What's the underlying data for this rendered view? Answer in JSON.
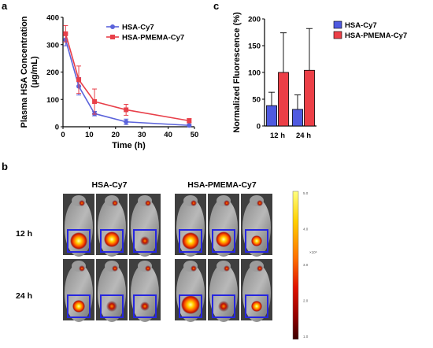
{
  "chart_data": [
    {
      "panel": "a",
      "type": "line",
      "xlabel": "Time (h)",
      "ylabel": "Plasma HSA Concentration (μg/mL)",
      "ylabel_lines": [
        "Plasma HSA Concentration",
        "(μg/mL)"
      ],
      "xlim": [
        0,
        50
      ],
      "ylim": [
        0,
        400
      ],
      "xticks": [
        0,
        10,
        20,
        30,
        40,
        50
      ],
      "yticks": [
        0,
        100,
        200,
        300,
        400
      ],
      "grid": false,
      "legend_position": "top-right",
      "series": [
        {
          "name": "HSA-Cy7",
          "color": "#5b63db",
          "marker": "circle",
          "x": [
            1,
            6,
            12,
            24,
            48
          ],
          "y": [
            318,
            148,
            48,
            18,
            5
          ],
          "err": [
            22,
            32,
            8,
            10,
            3
          ]
        },
        {
          "name": "HSA-PMEMA-Cy7",
          "color": "#e8404a",
          "marker": "square",
          "x": [
            1,
            6,
            12,
            24,
            48
          ],
          "y": [
            340,
            172,
            92,
            62,
            22
          ],
          "err": [
            30,
            50,
            46,
            20,
            8
          ]
        }
      ]
    },
    {
      "panel": "c",
      "type": "bar",
      "categories": [
        "12 h",
        "24 h"
      ],
      "ylabel": "Normalized Fluorescence (%)",
      "ylim": [
        0,
        200
      ],
      "yticks": [
        0,
        50,
        100,
        150,
        200
      ],
      "grid": false,
      "legend_position": "top-right",
      "series": [
        {
          "name": "HSA-Cy7",
          "color": "#4f5ae0",
          "values": [
            38,
            31
          ],
          "err": [
            25,
            27
          ]
        },
        {
          "name": "HSA-PMEMA-Cy7",
          "color": "#ec3f47",
          "values": [
            100,
            104
          ],
          "err": [
            74,
            78
          ]
        }
      ]
    }
  ],
  "panel_b": {
    "letter": "b",
    "groups": [
      "HSA-Cy7",
      "HSA-PMEMA-Cy7"
    ],
    "rows": [
      "12 h",
      "24 h"
    ],
    "colorbar": {
      "ticks": [
        "5.0",
        "4.0",
        "3.0",
        "2.0",
        "1.0"
      ],
      "unit": "×10⁸",
      "colors": [
        "#ffff80",
        "#ffd000",
        "#ff7000",
        "#e01000",
        "#900000",
        "#3a0000"
      ]
    }
  },
  "labels": {
    "a": "a",
    "b": "b",
    "c": "c"
  }
}
